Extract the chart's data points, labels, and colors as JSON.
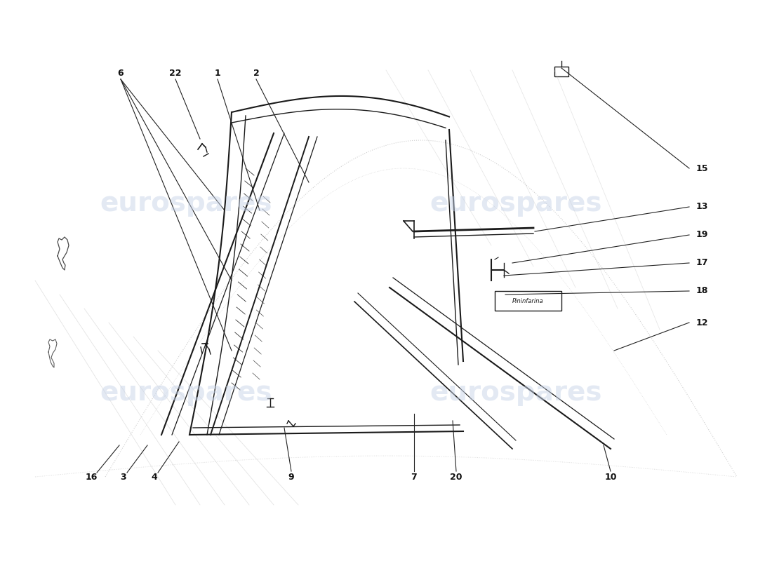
{
  "background_color": "#ffffff",
  "watermark_text": "eurospares",
  "watermark_color": "#c8d4e8",
  "fig_width": 11.0,
  "fig_height": 8.0,
  "line_color": "#1a1a1a",
  "label_color": "#111111",
  "silhouette_color": "#bbbbbb",
  "callout_color": "#222222"
}
